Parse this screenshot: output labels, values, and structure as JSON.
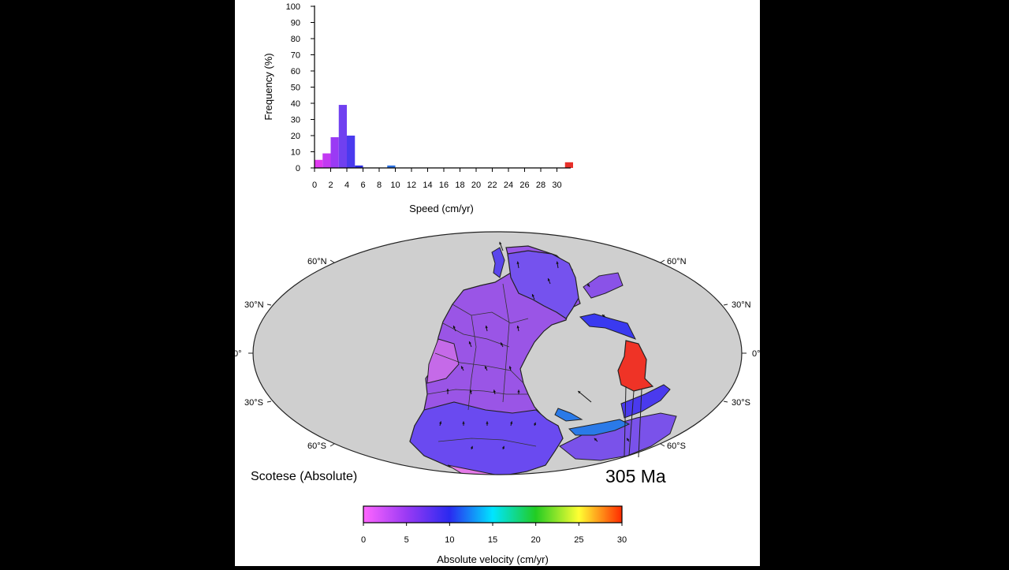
{
  "chart_data": [
    {
      "type": "bar",
      "xlabel": "Speed (cm/yr)",
      "ylabel": "Frequency (%)",
      "xlim": [
        0,
        31.5
      ],
      "ylim": [
        0,
        100
      ],
      "xticks": [
        0,
        2,
        4,
        6,
        8,
        10,
        12,
        14,
        16,
        18,
        20,
        22,
        24,
        26,
        28,
        30
      ],
      "yticks": [
        0,
        10,
        20,
        30,
        40,
        50,
        60,
        70,
        80,
        90,
        100
      ],
      "grid": false,
      "bin_width": 1,
      "bins": [
        {
          "x": 0,
          "value": 5,
          "color": "#e03af0"
        },
        {
          "x": 1,
          "value": 9,
          "color": "#c23af2"
        },
        {
          "x": 2,
          "value": 19,
          "color": "#9a3af4"
        },
        {
          "x": 3,
          "value": 39,
          "color": "#7040f0"
        },
        {
          "x": 4,
          "value": 20,
          "color": "#4a3aee"
        },
        {
          "x": 5,
          "value": 1.5,
          "color": "#2a2ae0"
        },
        {
          "x": 9,
          "value": 1.5,
          "color": "#2a70e0"
        },
        {
          "x": 31,
          "value": 3.5,
          "color": "#e8302a"
        }
      ]
    },
    {
      "type": "map",
      "projection": "mollweide",
      "lat_labels": [
        "60°N",
        "30°N",
        "0°",
        "30°S",
        "60°S"
      ],
      "model_label": "Scotese (Absolute)",
      "age_label": "305 Ma",
      "colorbar": {
        "label": "Absolute velocity (cm/yr)",
        "range": [
          0,
          30
        ],
        "ticks": [
          0,
          5,
          10,
          15,
          20,
          25,
          30
        ],
        "colors": [
          "#ff66ff",
          "#9a3af4",
          "#2a2af0",
          "#00e5ff",
          "#22cc22",
          "#ffff33",
          "#ff2a00"
        ]
      }
    }
  ]
}
